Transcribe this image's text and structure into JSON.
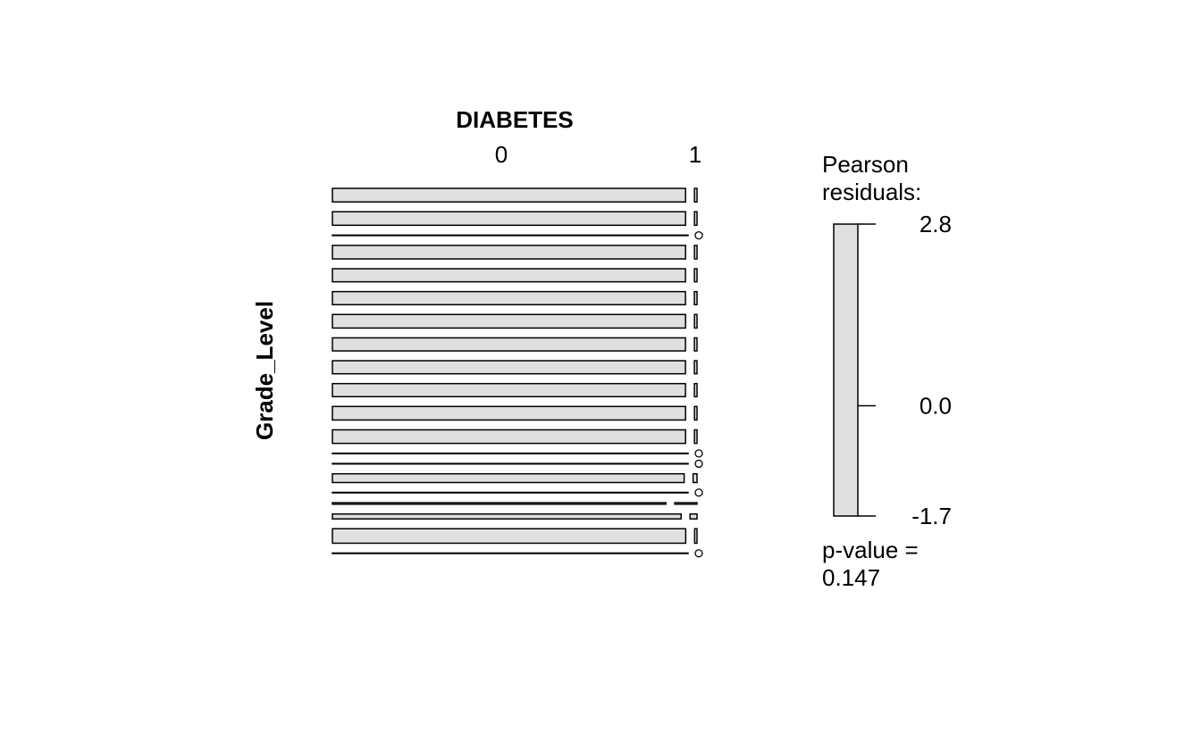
{
  "chart_data": {
    "type": "mosaic",
    "title": "DIABETES",
    "row_variable": "Grade_Level",
    "categories": [
      null,
      null,
      null,
      null,
      null,
      null,
      null,
      null,
      null,
      null,
      null,
      null,
      null,
      null,
      null,
      null,
      null,
      null,
      null,
      null
    ],
    "columns": [
      "0",
      "1"
    ],
    "series": [
      {
        "name": "0",
        "color": "#e0e0e0",
        "values": [
          140,
          140,
          5,
          140,
          135,
          135,
          140,
          135,
          135,
          135,
          140,
          140,
          5,
          5,
          90,
          5,
          15,
          50,
          150,
          5
        ]
      },
      {
        "name": "1",
        "color": "#e0e0e0",
        "values": [
          1,
          1,
          0,
          1,
          1,
          1,
          1,
          1,
          1,
          1,
          1,
          1,
          0,
          0,
          1,
          0,
          1,
          1,
          1,
          0
        ]
      }
    ],
    "legend": {
      "title_lines": [
        "Pearson",
        "residuals:"
      ],
      "color": "#e0e0e0",
      "ylim": [
        -1.7,
        2.8
      ],
      "yticks": [
        2.8,
        {
          "value": 0,
          "label": "0.0"
        },
        -1.7
      ]
    },
    "p_value_lines": [
      "p-value =",
      "0.147"
    ]
  }
}
